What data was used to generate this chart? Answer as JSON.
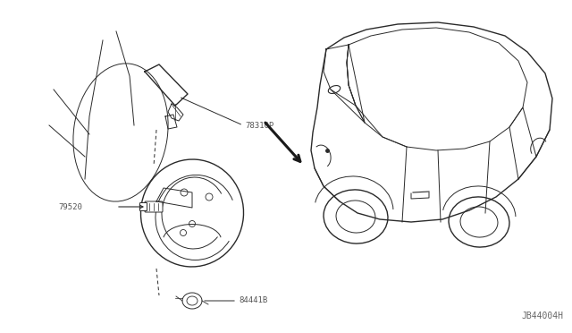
{
  "background_color": "#ffffff",
  "line_color": "#2a2a2a",
  "label_color": "#555555",
  "diagram_id": "JB44004H",
  "figsize": [
    6.4,
    3.72
  ],
  "dpi": 100,
  "label_78310P": "78310P",
  "label_79520": "79520",
  "label_84441B": "84441B"
}
